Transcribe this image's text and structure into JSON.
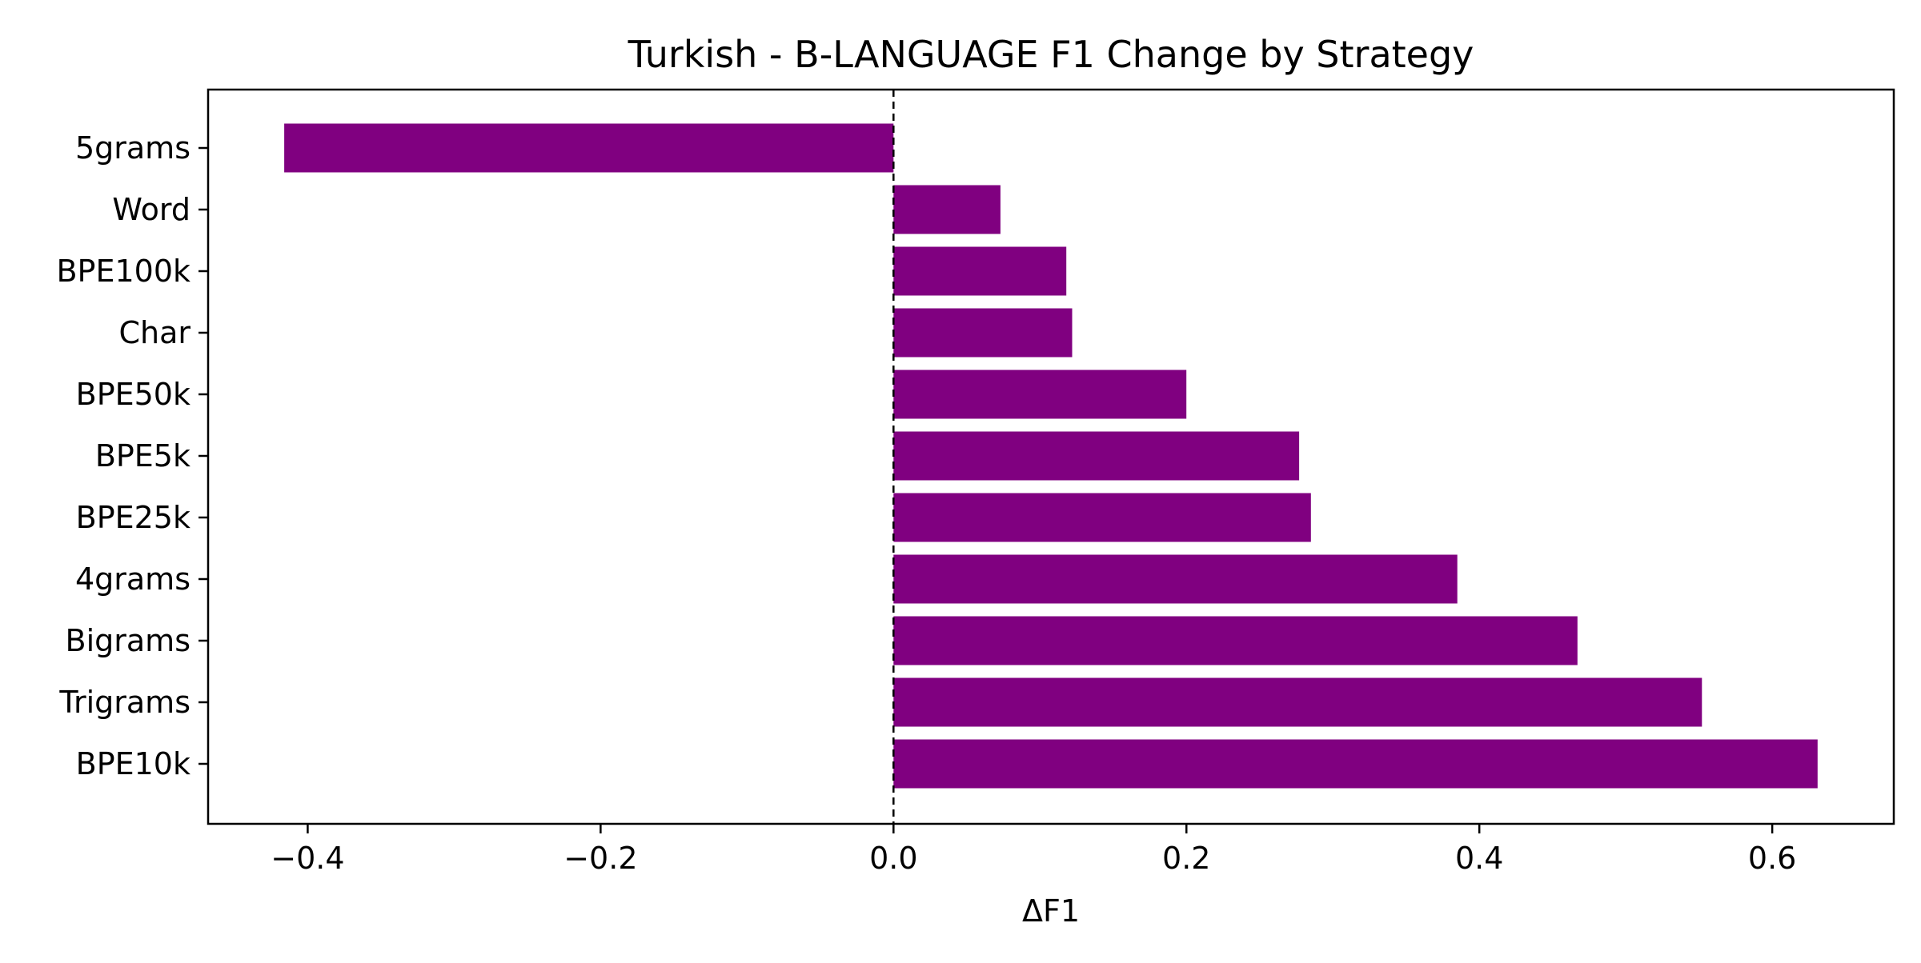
{
  "chart_data": {
    "type": "bar",
    "orientation": "horizontal",
    "title": "Turkish - B-LANGUAGE F1 Change by Strategy",
    "xlabel": "ΔF1",
    "ylabel": "",
    "categories": [
      "5grams",
      "Word",
      "BPE100k",
      "Char",
      "BPE50k",
      "BPE5k",
      "BPE25k",
      "4grams",
      "Bigrams",
      "Trigrams",
      "BPE10k"
    ],
    "values": [
      -0.416,
      0.073,
      0.118,
      0.122,
      0.2,
      0.277,
      0.285,
      0.385,
      0.467,
      0.552,
      0.631
    ],
    "xlim": [
      -0.468,
      0.683
    ],
    "xticks": [
      -0.4,
      -0.2,
      0.0,
      0.2,
      0.4,
      0.6
    ],
    "xtick_labels": [
      "−0.4",
      "−0.2",
      "0.0",
      "0.2",
      "0.4",
      "0.6"
    ],
    "bar_color": "#800080",
    "reference_line": {
      "x": 0.0,
      "style": "dashed",
      "color": "#000000"
    },
    "grid": false,
    "legend": "none"
  }
}
